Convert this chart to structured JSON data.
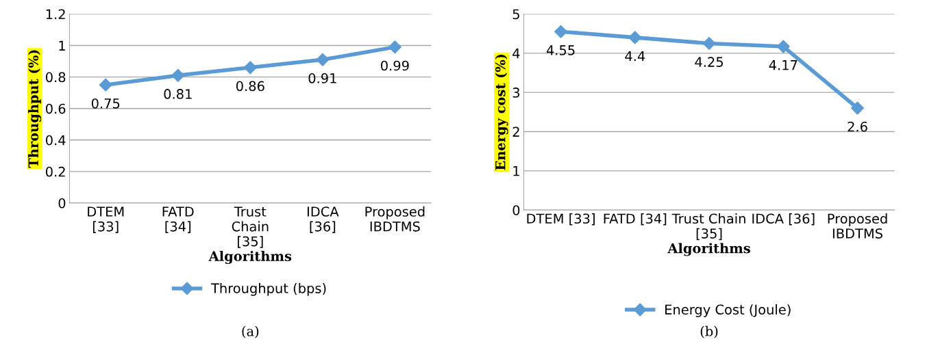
{
  "chart_data": [
    {
      "type": "line",
      "categories": [
        "DTEM [33]",
        "FATD [34]",
        "Trust Chain [35]",
        "IDCA [36]",
        "Proposed IBDTMS"
      ],
      "series": [
        {
          "name": "Throughput (bps)",
          "color": "#5b9bd5",
          "values": [
            0.75,
            0.81,
            0.86,
            0.91,
            0.99
          ]
        }
      ],
      "ylabel": "Throughput (%)",
      "xlabel": "Algorithms",
      "ylim": [
        0,
        1.2
      ],
      "yticks": [
        0,
        0.2,
        0.4,
        0.6,
        0.8,
        1,
        1.2
      ],
      "grid": "y",
      "legend": "bottom",
      "marker": "diamond",
      "line_style": "solid",
      "data_labels": true,
      "annotations": [
        "(a)"
      ]
    },
    {
      "type": "line",
      "categories": [
        "DTEM [33]",
        "FATD [34]",
        "Trust Chain [35]",
        "IDCA [36]",
        "Proposed IBDTMS"
      ],
      "series": [
        {
          "name": "Energy Cost (Joule)",
          "color": "#5b9bd5",
          "values": [
            4.55,
            4.4,
            4.25,
            4.17,
            2.6
          ]
        }
      ],
      "ylabel": "Energy cost (%)",
      "xlabel": "Algorithms",
      "ylim": [
        0,
        5
      ],
      "yticks": [
        0,
        1,
        2,
        3,
        4,
        5
      ],
      "grid": "y",
      "legend": "bottom",
      "marker": "diamond",
      "line_style": "solid",
      "data_labels": true,
      "annotations": [
        "(b)"
      ]
    }
  ]
}
